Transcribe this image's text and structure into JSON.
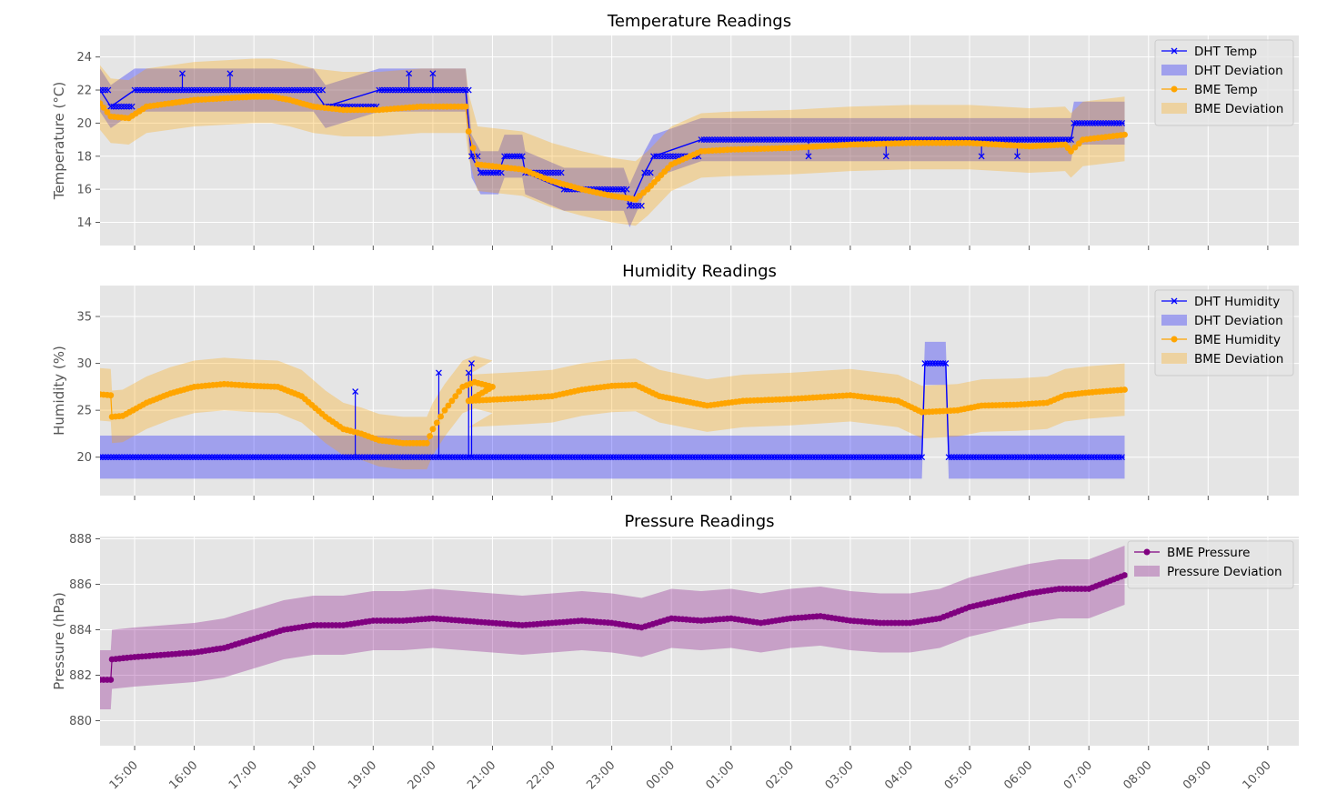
{
  "x_ticks": [
    "15:00",
    "16:00",
    "17:00",
    "18:00",
    "19:00",
    "20:00",
    "21:00",
    "22:00",
    "23:00",
    "00:00",
    "01:00",
    "02:00",
    "03:00",
    "04:00",
    "05:00",
    "06:00",
    "07:00",
    "08:00",
    "09:00",
    "10:00"
  ],
  "colors": {
    "plot_bg": "#e5e5e5",
    "grid": "#ffffff",
    "dht": "#0000ff",
    "bme": "#ffa500",
    "pressure": "#800080",
    "tick": "#555555",
    "text": "#000000"
  },
  "chart_data": [
    {
      "type": "line",
      "title": "Temperature Readings",
      "xlabel": "",
      "ylabel": "Temperature (°C)",
      "x_unit": "hours after 14:00",
      "xlim": [
        0.42,
        20.52
      ],
      "ylim": [
        12.6,
        25.3
      ],
      "yticks": [
        14,
        16,
        18,
        20,
        22,
        24
      ],
      "legend": {
        "position": "top-right",
        "entries": [
          "DHT Temp",
          "DHT Deviation",
          "BME Temp",
          "BME Deviation"
        ]
      },
      "grid": true,
      "series": [
        {
          "name": "DHT Temp",
          "color": "#0000ff",
          "marker": "x",
          "points": [
            [
              0.42,
              22
            ],
            [
              0.6,
              21
            ],
            [
              1.0,
              22
            ],
            [
              4.0,
              22
            ],
            [
              4.2,
              21
            ],
            [
              5.1,
              22
            ],
            [
              6.55,
              22
            ],
            [
              6.65,
              18
            ],
            [
              6.8,
              17
            ],
            [
              7.1,
              17
            ],
            [
              7.2,
              18
            ],
            [
              7.5,
              18
            ],
            [
              7.55,
              17
            ],
            [
              8.2,
              16
            ],
            [
              9.2,
              16
            ],
            [
              9.3,
              15
            ],
            [
              9.55,
              17
            ],
            [
              9.7,
              18
            ],
            [
              10.5,
              19
            ],
            [
              16.7,
              19
            ],
            [
              16.75,
              20
            ],
            [
              17.6,
              20
            ]
          ],
          "spikes": [
            [
              1.8,
              23
            ],
            [
              2.6,
              23
            ],
            [
              5.6,
              23
            ],
            [
              6.0,
              23
            ],
            [
              12.3,
              18
            ],
            [
              13.6,
              18
            ],
            [
              15.2,
              18
            ],
            [
              15.8,
              18
            ]
          ],
          "deviation": [
            1.3,
            1.3
          ]
        },
        {
          "name": "BME Temp",
          "color": "#ffa500",
          "marker": "o",
          "points": [
            [
              0.42,
              21.2
            ],
            [
              0.6,
              20.4
            ],
            [
              0.9,
              20.3
            ],
            [
              1.2,
              21.0
            ],
            [
              2.0,
              21.4
            ],
            [
              3.0,
              21.6
            ],
            [
              3.3,
              21.6
            ],
            [
              3.6,
              21.4
            ],
            [
              4.0,
              21.0
            ],
            [
              4.5,
              20.8
            ],
            [
              5.1,
              20.8
            ],
            [
              5.8,
              21.0
            ],
            [
              6.55,
              21.0
            ],
            [
              6.6,
              19.5
            ],
            [
              6.75,
              17.5
            ],
            [
              7.5,
              17.2
            ],
            [
              8.0,
              16.5
            ],
            [
              8.5,
              16.0
            ],
            [
              9.0,
              15.6
            ],
            [
              9.4,
              15.4
            ],
            [
              9.6,
              16.0
            ],
            [
              10.0,
              17.5
            ],
            [
              10.5,
              18.3
            ],
            [
              11.0,
              18.4
            ],
            [
              12.0,
              18.5
            ],
            [
              13.0,
              18.7
            ],
            [
              14.0,
              18.8
            ],
            [
              15.0,
              18.8
            ],
            [
              16.0,
              18.6
            ],
            [
              16.6,
              18.7
            ],
            [
              16.7,
              18.3
            ],
            [
              16.9,
              19.0
            ],
            [
              17.6,
              19.3
            ]
          ],
          "deviation": [
            2.3,
            1.6
          ]
        }
      ]
    },
    {
      "type": "line",
      "title": "Humidity Readings",
      "xlabel": "",
      "ylabel": "Humidity (%)",
      "x_unit": "hours after 14:00",
      "xlim": [
        0.42,
        20.52
      ],
      "ylim": [
        15.9,
        38.3
      ],
      "yticks": [
        20,
        25,
        30,
        35
      ],
      "legend": {
        "position": "top-right",
        "entries": [
          "DHT Humidity",
          "DHT Deviation",
          "BME Humidity",
          "BME Deviation"
        ]
      },
      "grid": true,
      "series": [
        {
          "name": "DHT Humidity",
          "color": "#0000ff",
          "marker": "x",
          "points": [
            [
              0.42,
              20
            ],
            [
              14.2,
              20
            ],
            [
              14.25,
              30
            ],
            [
              14.6,
              30
            ],
            [
              14.65,
              20
            ],
            [
              17.6,
              20
            ]
          ],
          "spikes": [
            [
              4.7,
              27
            ],
            [
              6.1,
              29
            ],
            [
              6.6,
              29
            ],
            [
              6.65,
              30
            ]
          ],
          "deviation": [
            2.3,
            2.3
          ]
        },
        {
          "name": "BME Humidity",
          "color": "#ffa500",
          "marker": "o",
          "points": [
            [
              0.42,
              26.7
            ],
            [
              0.6,
              26.6
            ],
            [
              0.62,
              24.3
            ],
            [
              0.8,
              24.4
            ],
            [
              1.2,
              25.8
            ],
            [
              1.6,
              26.8
            ],
            [
              2.0,
              27.5
            ],
            [
              2.5,
              27.8
            ],
            [
              3.0,
              27.6
            ],
            [
              3.4,
              27.5
            ],
            [
              3.8,
              26.5
            ],
            [
              4.2,
              24.3
            ],
            [
              4.5,
              23.0
            ],
            [
              4.8,
              22.5
            ],
            [
              5.1,
              21.8
            ],
            [
              5.5,
              21.5
            ],
            [
              5.9,
              21.5
            ],
            [
              6.0,
              23.0
            ],
            [
              6.2,
              25.0
            ],
            [
              6.5,
              27.5
            ],
            [
              6.7,
              28.0
            ],
            [
              7.0,
              27.5
            ],
            [
              6.6,
              26.0
            ],
            [
              7.5,
              26.3
            ],
            [
              8.0,
              26.5
            ],
            [
              8.5,
              27.2
            ],
            [
              9.0,
              27.6
            ],
            [
              9.4,
              27.7
            ],
            [
              9.8,
              26.5
            ],
            [
              10.2,
              26.0
            ],
            [
              10.6,
              25.5
            ],
            [
              11.2,
              26.0
            ],
            [
              12.0,
              26.2
            ],
            [
              13.0,
              26.6
            ],
            [
              13.8,
              26.0
            ],
            [
              14.2,
              24.8
            ],
            [
              14.8,
              25.0
            ],
            [
              15.2,
              25.5
            ],
            [
              15.8,
              25.6
            ],
            [
              16.3,
              25.8
            ],
            [
              16.6,
              26.6
            ],
            [
              17.0,
              26.9
            ],
            [
              17.6,
              27.2
            ]
          ],
          "deviation": [
            2.8,
            2.8
          ]
        }
      ]
    },
    {
      "type": "line",
      "title": "Pressure Readings",
      "xlabel": "",
      "ylabel": "Pressure (hPa)",
      "x_unit": "hours after 14:00",
      "xlim": [
        0.42,
        20.52
      ],
      "ylim": [
        878.9,
        888.1
      ],
      "yticks": [
        880,
        882,
        884,
        886,
        888
      ],
      "legend": {
        "position": "top-right",
        "entries": [
          "BME Pressure",
          "Pressure Deviation"
        ]
      },
      "grid": true,
      "series": [
        {
          "name": "BME Pressure",
          "color": "#800080",
          "marker": "o",
          "points": [
            [
              0.42,
              881.8
            ],
            [
              0.6,
              881.8
            ],
            [
              0.62,
              882.7
            ],
            [
              1.0,
              882.8
            ],
            [
              1.5,
              882.9
            ],
            [
              2.0,
              883.0
            ],
            [
              2.5,
              883.2
            ],
            [
              3.0,
              883.6
            ],
            [
              3.5,
              884.0
            ],
            [
              4.0,
              884.2
            ],
            [
              4.5,
              884.2
            ],
            [
              5.0,
              884.4
            ],
            [
              5.5,
              884.4
            ],
            [
              6.0,
              884.5
            ],
            [
              6.5,
              884.4
            ],
            [
              7.0,
              884.3
            ],
            [
              7.5,
              884.2
            ],
            [
              8.0,
              884.3
            ],
            [
              8.5,
              884.4
            ],
            [
              9.0,
              884.3
            ],
            [
              9.5,
              884.1
            ],
            [
              10.0,
              884.5
            ],
            [
              10.5,
              884.4
            ],
            [
              11.0,
              884.5
            ],
            [
              11.5,
              884.3
            ],
            [
              12.0,
              884.5
            ],
            [
              12.5,
              884.6
            ],
            [
              13.0,
              884.4
            ],
            [
              13.5,
              884.3
            ],
            [
              14.0,
              884.3
            ],
            [
              14.5,
              884.5
            ],
            [
              15.0,
              885.0
            ],
            [
              15.5,
              885.3
            ],
            [
              16.0,
              885.6
            ],
            [
              16.5,
              885.8
            ],
            [
              17.0,
              885.8
            ],
            [
              17.3,
              886.1
            ],
            [
              17.6,
              886.4
            ]
          ],
          "deviation": [
            1.3,
            1.3
          ]
        }
      ]
    }
  ]
}
